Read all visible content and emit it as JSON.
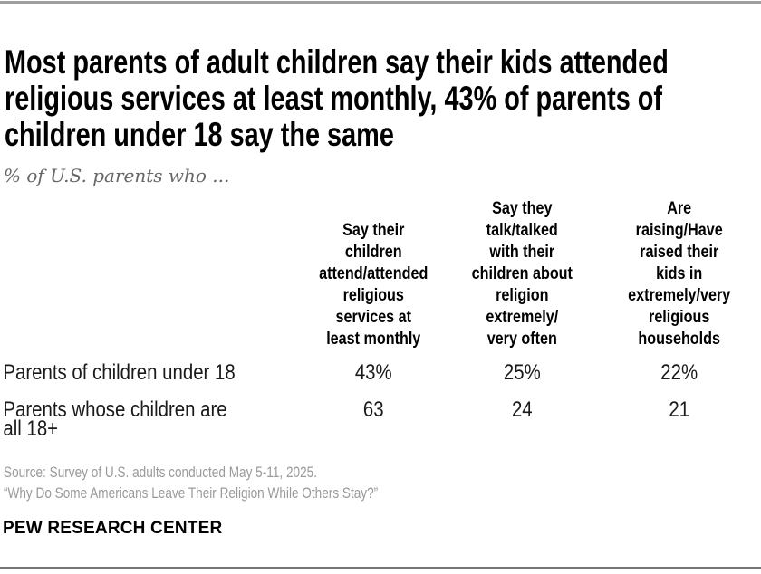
{
  "header": {
    "title": "Most parents of adult children say their kids attended\nreligious services at least monthly, 43% of parents of\nchildren under 18 say the same",
    "subtitle": "% of U.S. parents who ..."
  },
  "table": {
    "columns": [
      "Say their\nchildren\nattend/attended\nreligious\nservices at\nleast monthly",
      "Say they\ntalk/talked\nwith their\nchildren about\nreligion\nextremely/\nvery often",
      "Are\nraising/Have\nraised their\nkids in\nextremely/very\nreligious\nhouseholds"
    ],
    "rows": [
      {
        "label": "Parents of children under 18",
        "values": [
          "43%",
          "25%",
          "22%"
        ]
      },
      {
        "label": "Parents whose children are\nall 18+",
        "values": [
          "63",
          "24",
          "21"
        ]
      }
    ]
  },
  "footer": {
    "source": "Source: Survey of U.S. adults conducted May 5-11, 2025.",
    "quote": "“Why Do Some Americans Leave Their Religion While Others Stay?”",
    "brand": "PEW RESEARCH CENTER"
  },
  "colors": {
    "background": "#ffffff",
    "title_text": "#000000",
    "subtitle_text": "#666666",
    "body_text": "#1a1a1a",
    "source_text": "#9a9a9a",
    "rule_top": "#9f9f9f",
    "rule_bottom": "#757575"
  },
  "chart_data": {
    "type": "table",
    "title": "Most parents of adult children say their kids attended religious services at least monthly, 43% of parents of children under 18 say the same",
    "subtitle": "% of U.S. parents who ...",
    "units": "percent of U.S. parents",
    "columns": [
      "Say their children attend/attended religious services at least monthly",
      "Say they talk/talked with their children about religion extremely/very often",
      "Are raising/Have raised their kids in extremely/very religious households"
    ],
    "rows": [
      {
        "label": "Parents of children under 18",
        "values": [
          43,
          25,
          22
        ]
      },
      {
        "label": "Parents whose children are all 18+",
        "values": [
          63,
          24,
          21
        ]
      }
    ],
    "source": "Source: Survey of U.S. adults conducted May 5-11, 2025.",
    "report": "Why Do Some Americans Leave Their Religion While Others Stay?",
    "organization": "PEW RESEARCH CENTER"
  }
}
